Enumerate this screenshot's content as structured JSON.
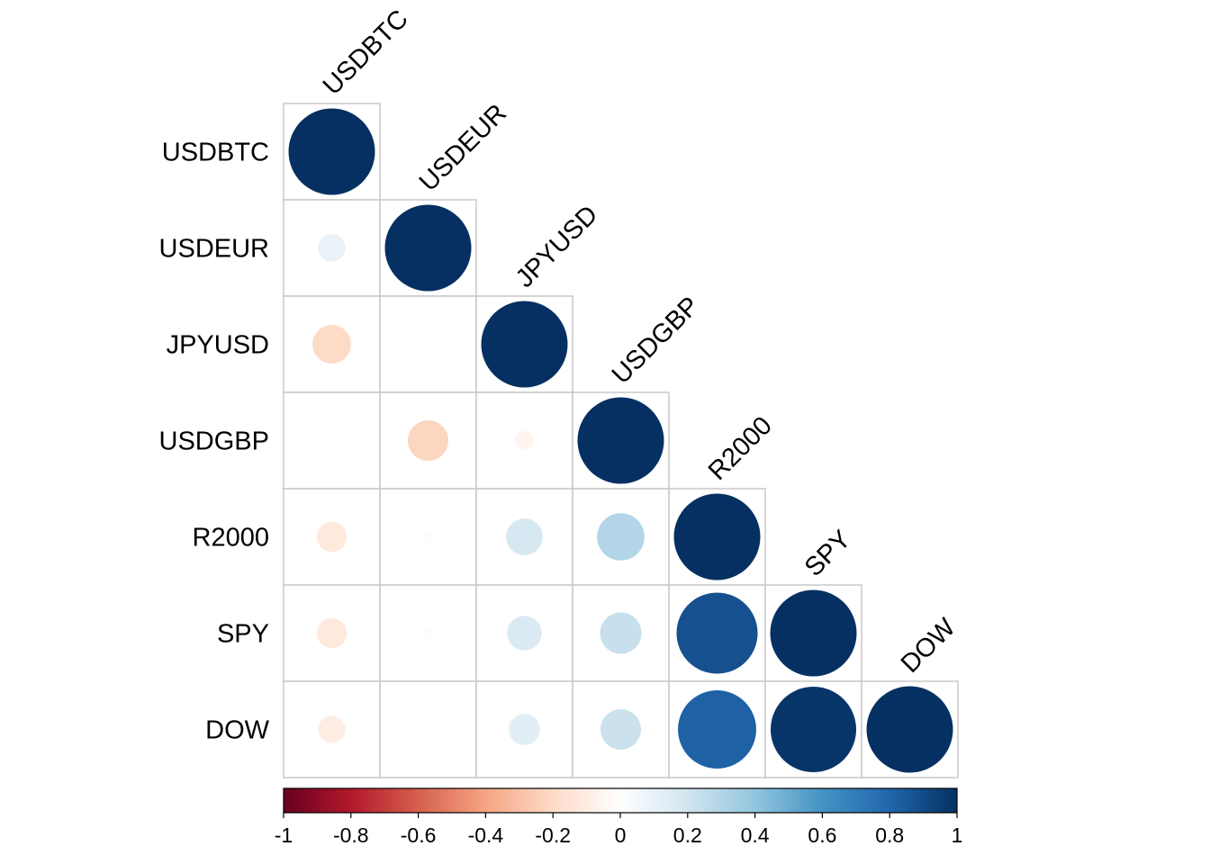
{
  "chart_data": {
    "type": "heatmap",
    "variables": [
      "USDBTC",
      "USDEUR",
      "JPYUSD",
      "USDGBP",
      "R2000",
      "SPY",
      "DOW"
    ],
    "layout": "lower-triangular",
    "method": "circle",
    "matrix": [
      [
        1.0,
        null,
        null,
        null,
        null,
        null,
        null
      ],
      [
        0.1,
        1.0,
        null,
        null,
        null,
        null,
        null
      ],
      [
        -0.2,
        0.01,
        1.0,
        null,
        null,
        null,
        null
      ],
      [
        0.0,
        -0.22,
        -0.05,
        1.0,
        null,
        null,
        null
      ],
      [
        -0.12,
        0.02,
        0.18,
        0.3,
        1.0,
        null,
        null
      ],
      [
        -0.12,
        0.02,
        0.16,
        0.23,
        0.88,
        1.0,
        null
      ],
      [
        -0.1,
        0.0,
        0.13,
        0.22,
        0.82,
        0.98,
        1.0
      ]
    ],
    "colorbar": {
      "range": [
        -1,
        1
      ],
      "ticks": [
        "-1",
        "-0.8",
        "-0.6",
        "-0.4",
        "-0.2",
        "0",
        "0.2",
        "0.4",
        "0.6",
        "0.8",
        "1"
      ],
      "position": "bottom"
    },
    "colors": {
      "scale": [
        "#67001F",
        "#B2182B",
        "#D6604D",
        "#F4A582",
        "#FDDBC7",
        "#FFFFFF",
        "#D1E5F0",
        "#92C5DE",
        "#4393C3",
        "#2166AC",
        "#053061"
      ],
      "grid": "#c8c8c8"
    }
  }
}
